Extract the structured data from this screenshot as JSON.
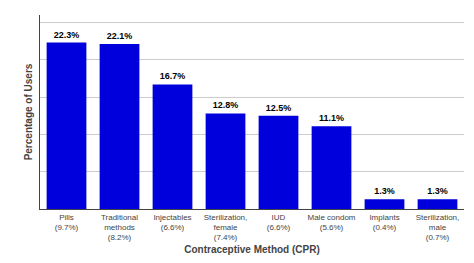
{
  "chart_data": {
    "type": "bar",
    "categories": [
      "Pills\n(9.7%)",
      "Traditional\nmethods\n(8.2%)",
      "Injectables\n(6.6%)",
      "Sterilization,\nfemale\n(7.4%)",
      "IUD\n(6.6%)",
      "Male condom\n(5.6%)",
      "Implants\n(0.4%)",
      "Sterilization,\nmale\n(0.7%)"
    ],
    "values": [
      22.3,
      22.1,
      16.7,
      12.8,
      12.5,
      11.1,
      1.3,
      1.3
    ],
    "value_labels": [
      "22.3%",
      "22.1%",
      "16.7%",
      "12.8%",
      "12.5%",
      "11.1%",
      "1.3%",
      "1.3%"
    ],
    "color": "#0000dd",
    "xlabel": "Contraceptive Method (CPR)",
    "ylabel": "Percentage of Users",
    "ylim": [
      0,
      26
    ],
    "yticks": [
      0,
      5,
      10,
      15,
      20,
      25
    ],
    "grid": true,
    "data_labels": true,
    "tick_labels": "x"
  }
}
